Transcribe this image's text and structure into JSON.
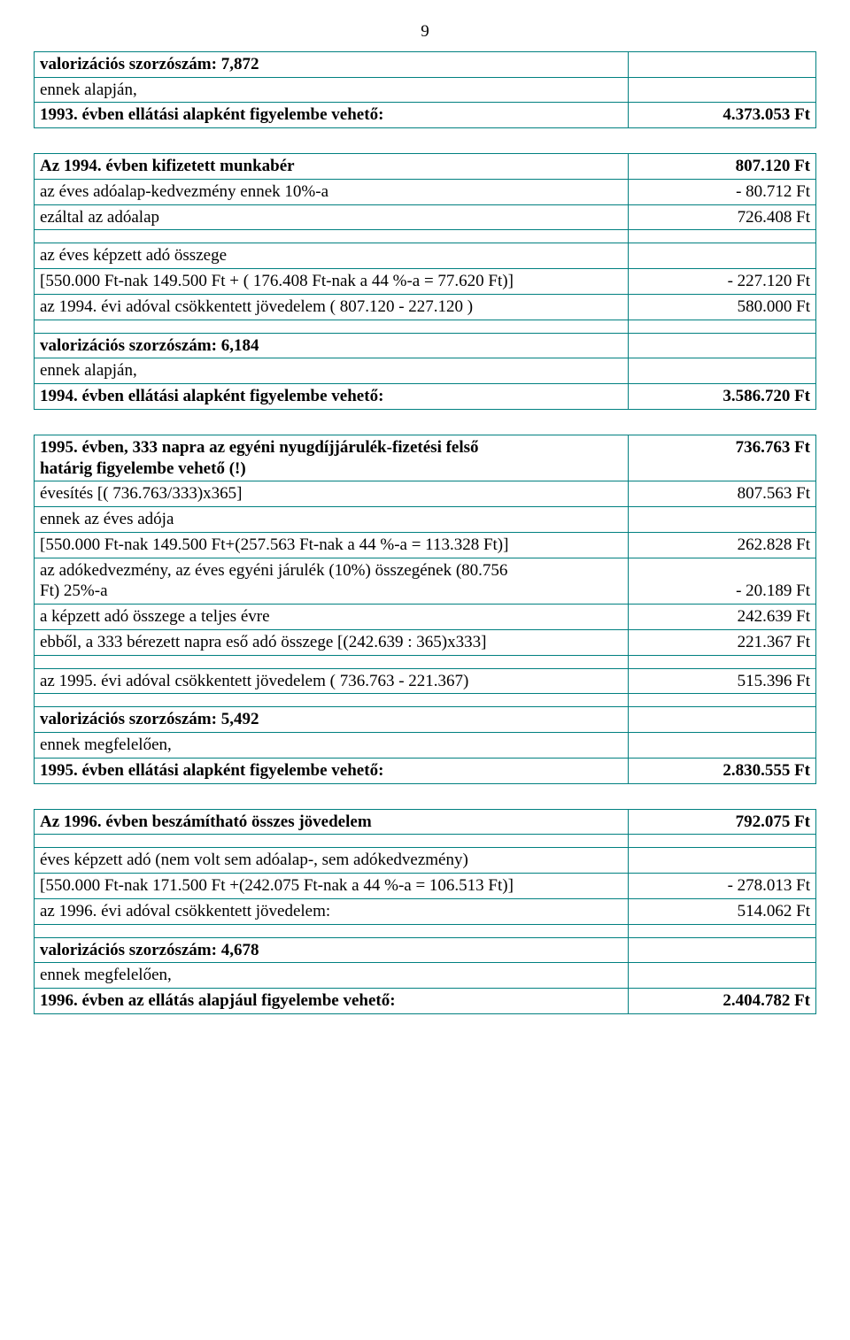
{
  "page_number": "9",
  "border_color": "#008080",
  "background": "#ffffff",
  "text_color": "#000000",
  "t1": {
    "r1_l": "valorizációs szorzószám: 7,872",
    "r2_l": "ennek alapján,",
    "r3_l": "1993. évben ellátási alapként figyelembe vehető:",
    "r3_v": "4.373.053 Ft"
  },
  "t2": {
    "r1_l": "Az 1994. évben kifizetett munkabér",
    "r1_v": "807.120 Ft",
    "r2_l": "az éves adóalap-kedvezmény ennek 10%-a",
    "r2_v": "- 80.712 Ft",
    "r3_l": "ezáltal az adóalap",
    "r3_v": "726.408 Ft",
    "r5_l": "az éves képzett adó összege",
    "r6_l": "[550.000 Ft-nak 149.500 Ft + ( 176.408 Ft-nak a 44 %-a = 77.620 Ft)]",
    "r6_v": "- 227.120 Ft",
    "r7_l": "az 1994. évi adóval csökkentett jövedelem ( 807.120 - 227.120 )",
    "r7_v": "580.000 Ft",
    "r9_l": "valorizációs szorzószám: 6,184",
    "r10_l": "ennek alapján,",
    "r11_l": "1994. évben ellátási alapként figyelembe vehető:",
    "r11_v": "3.586.720 Ft"
  },
  "t3": {
    "r1a_l": "1995. évben, 333 napra az egyéni nyugdíjjárulék-fizetési felső",
    "r1b_l": "határig figyelembe vehető (!)",
    "r1_v": "736.763 Ft",
    "r2_l": "évesítés [( 736.763/333)x365]",
    "r2_v": "807.563 Ft",
    "r3_l": "ennek az éves adója",
    "r4_l": "[550.000 Ft-nak 149.500 Ft+(257.563 Ft-nak a 44 %-a = 113.328 Ft)]",
    "r4_v": "262.828 Ft",
    "r5a_l": "az adókedvezmény, az éves egyéni járulék (10%) összegének (80.756",
    "r5b_l": "Ft) 25%-a",
    "r5_v": "- 20.189 Ft",
    "r6_l": "a képzett adó összege a teljes évre",
    "r6_v": "242.639 Ft",
    "r7_l": "ebből, a 333 bérezett napra eső adó összege [(242.639 : 365)x333]",
    "r7_v": "221.367 Ft",
    "r9_l": "az 1995. évi adóval csökkentett jövedelem ( 736.763 - 221.367)",
    "r9_v": "515.396 Ft",
    "r11_l": "valorizációs szorzószám: 5,492",
    "r12_l": "ennek megfelelően,",
    "r13_l": "1995. évben ellátási alapként figyelembe vehető:",
    "r13_v": "2.830.555 Ft"
  },
  "t4": {
    "r1_l": "Az 1996. évben beszámítható összes jövedelem",
    "r1_v": "792.075 Ft",
    "r3_l": "éves képzett adó (nem volt sem adóalap-, sem adókedvezmény)",
    "r4_l": "[550.000 Ft-nak 171.500 Ft +(242.075 Ft-nak a 44 %-a = 106.513 Ft)]",
    "r4_v": "- 278.013 Ft",
    "r5_l": "az 1996. évi adóval csökkentett jövedelem:",
    "r5_v": "514.062 Ft",
    "r7_l": "valorizációs szorzószám: 4,678",
    "r8_l": "ennek megfelelően,",
    "r9_l": "1996. évben az ellátás alapjául figyelembe vehető:",
    "r9_v": "2.404.782 Ft"
  }
}
